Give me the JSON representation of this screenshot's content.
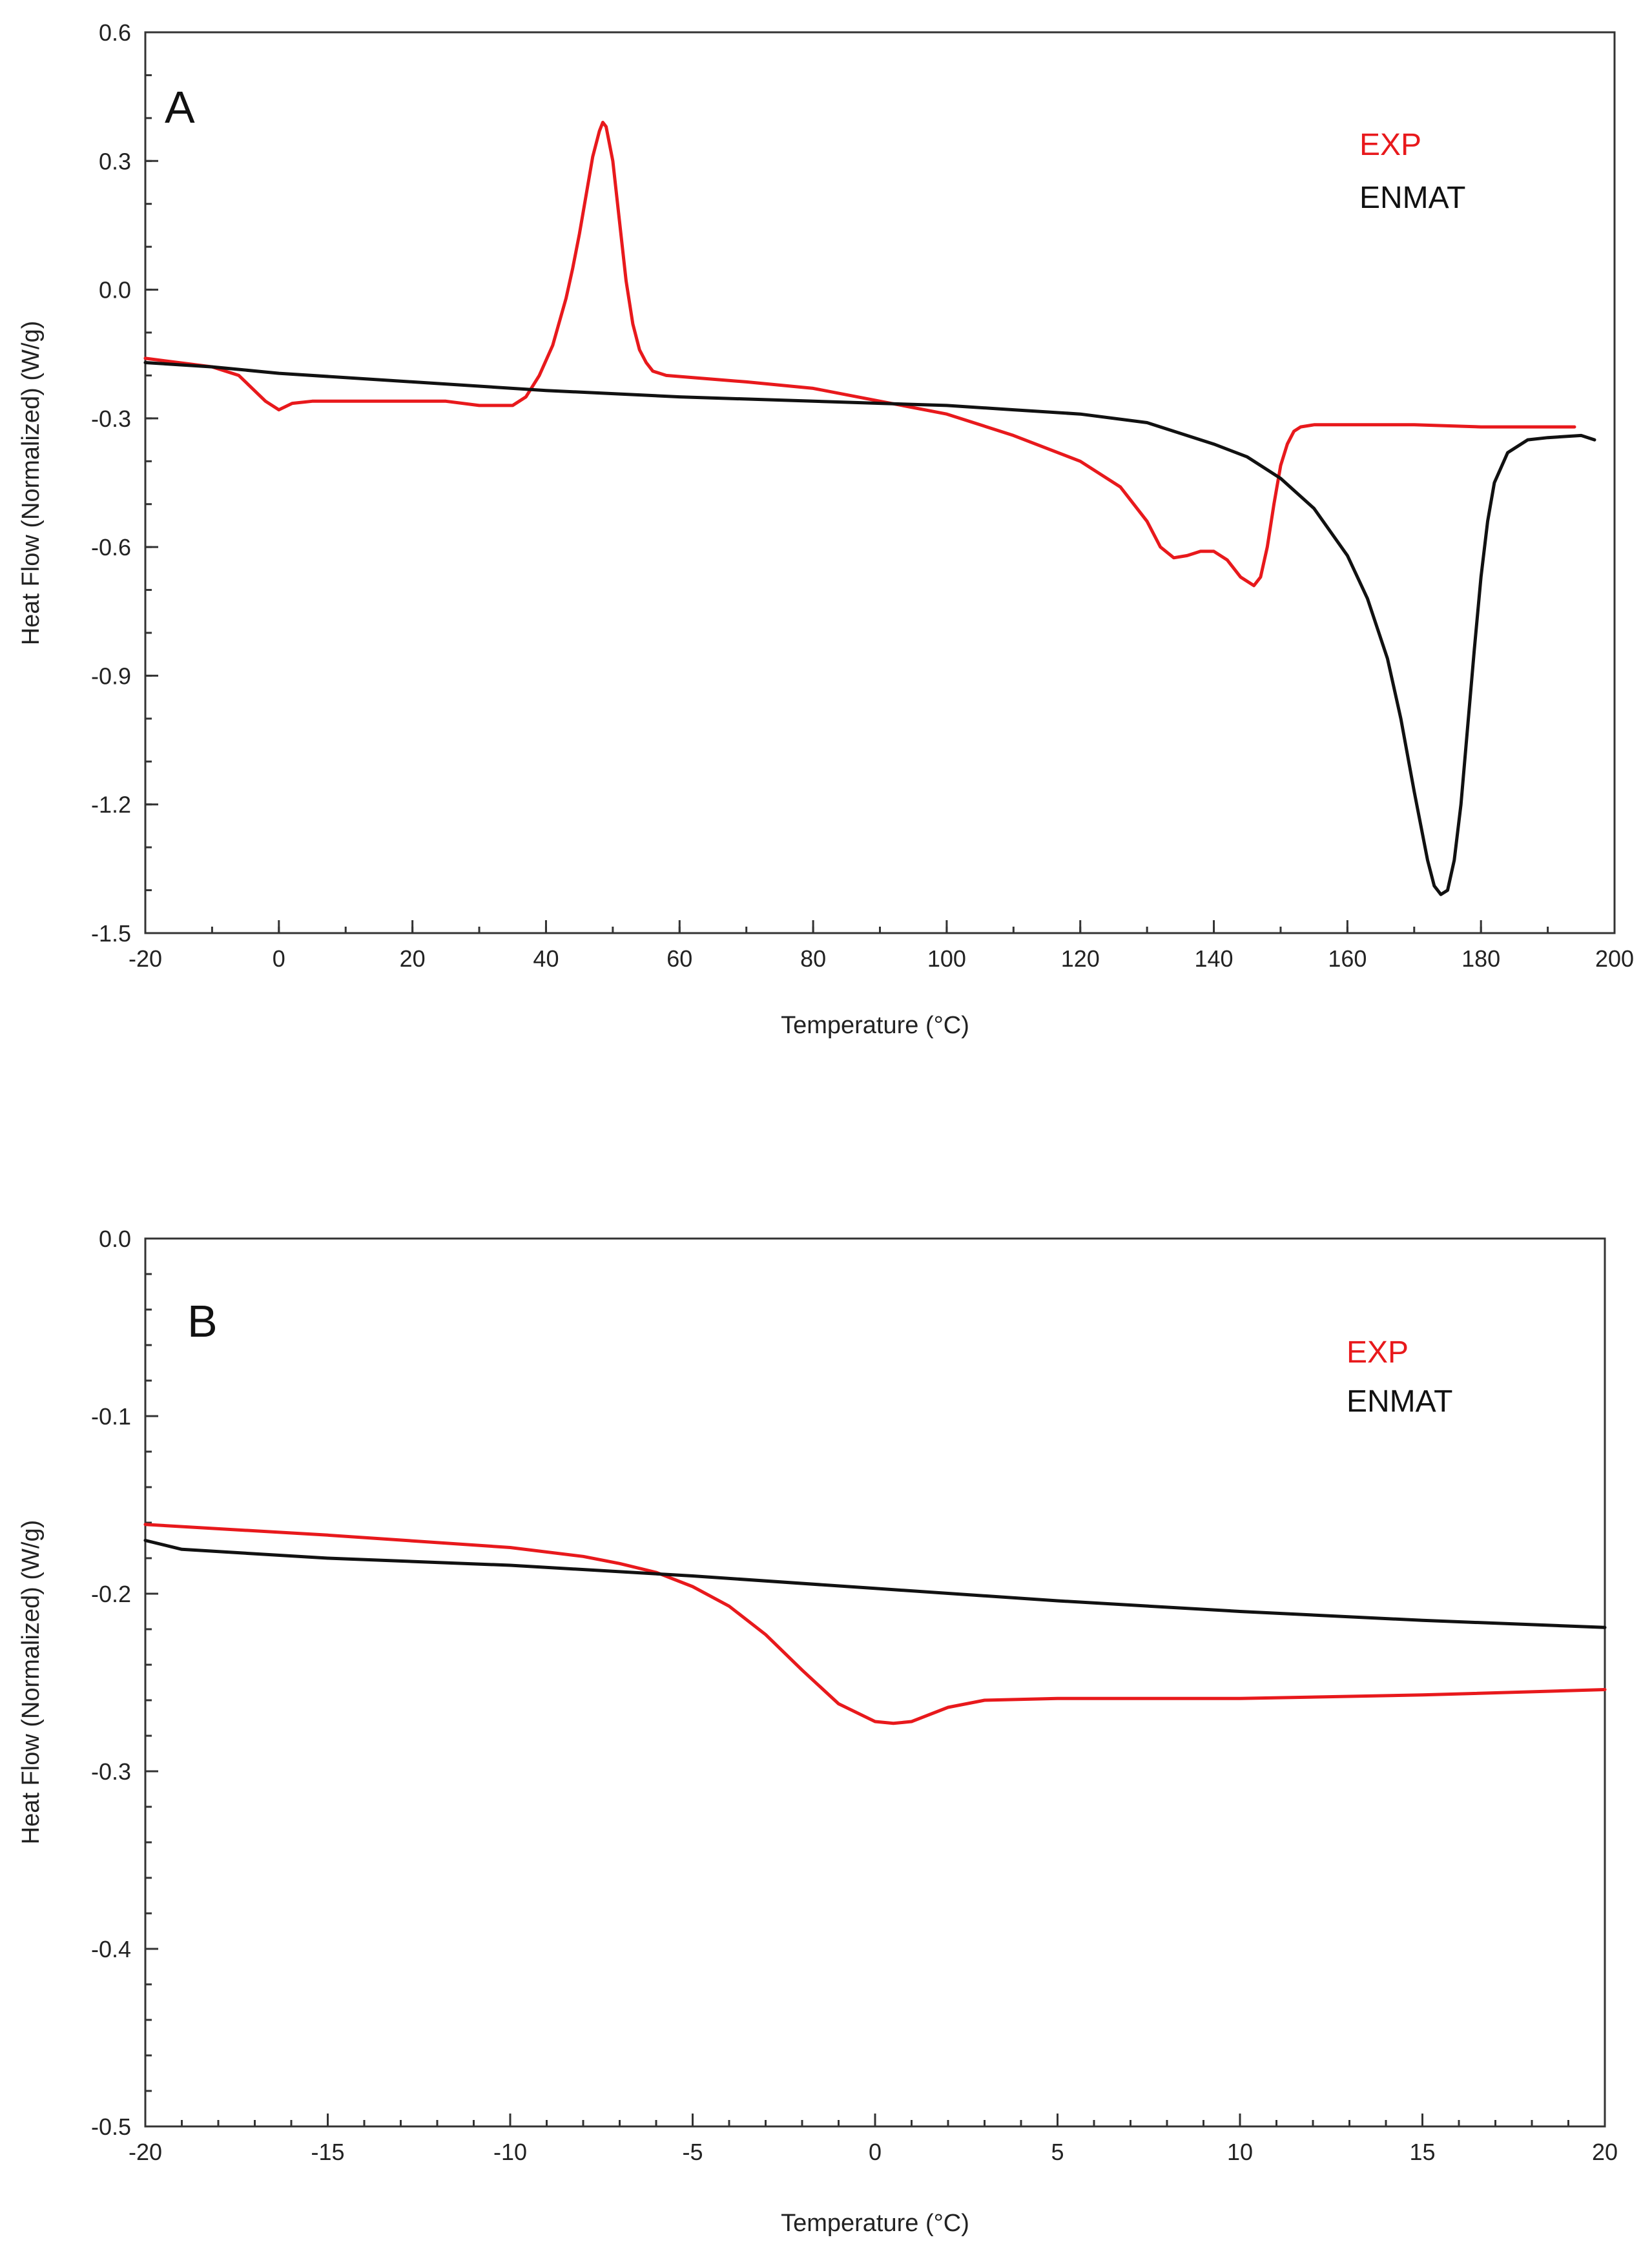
{
  "chart_data": [
    {
      "type": "line",
      "panel_label": "A",
      "xlabel": "Temperature  (°C)",
      "ylabel": "Heat Flow (Normalized)  (W/g)",
      "xlim": [
        -20,
        200
      ],
      "ylim": [
        -1.5,
        0.6
      ],
      "x_major_ticks": [
        -20,
        0,
        20,
        40,
        60,
        80,
        100,
        120,
        140,
        160,
        180,
        200
      ],
      "x_tick_labels": [
        "-20",
        "0",
        "20",
        "40",
        "60",
        "80",
        "100",
        "120",
        "140",
        "160",
        "180",
        "200"
      ],
      "y_major_ticks": [
        0.6,
        0.3,
        0.0,
        -0.3,
        -0.6,
        -0.9,
        -1.2,
        -1.5
      ],
      "y_tick_labels": [
        "0.6",
        "0.3",
        "0.0",
        "-0.3",
        "-0.6",
        "-0.9",
        "-1.2",
        "-1.5"
      ],
      "x_minor_step": 10,
      "y_minor_step": 0.1,
      "legend_position": "top-right",
      "series": [
        {
          "name": "EXP",
          "color": "#e8191c",
          "x": [
            -20,
            -10,
            -6,
            -4,
            -2,
            0,
            2,
            5,
            10,
            20,
            25,
            30,
            35,
            37,
            39,
            41,
            43,
            44,
            45,
            46,
            47,
            48,
            48.5,
            49,
            50,
            51,
            52,
            53,
            54,
            55,
            56,
            58,
            62,
            70,
            80,
            90,
            100,
            110,
            120,
            126,
            130,
            132,
            134,
            136,
            138,
            140,
            142,
            144,
            146,
            147,
            148,
            149,
            150,
            151,
            152,
            153,
            155,
            160,
            170,
            180,
            194
          ],
          "values": [
            -0.16,
            -0.18,
            -0.2,
            -0.23,
            -0.26,
            -0.28,
            -0.265,
            -0.26,
            -0.26,
            -0.26,
            -0.26,
            -0.27,
            -0.27,
            -0.25,
            -0.2,
            -0.13,
            -0.02,
            0.05,
            0.13,
            0.22,
            0.31,
            0.37,
            0.39,
            0.38,
            0.3,
            0.16,
            0.02,
            -0.08,
            -0.14,
            -0.17,
            -0.19,
            -0.2,
            -0.205,
            -0.215,
            -0.23,
            -0.26,
            -0.29,
            -0.34,
            -0.4,
            -0.46,
            -0.54,
            -0.6,
            -0.625,
            -0.62,
            -0.61,
            -0.61,
            -0.63,
            -0.67,
            -0.69,
            -0.67,
            -0.6,
            -0.5,
            -0.41,
            -0.36,
            -0.33,
            -0.32,
            -0.315,
            -0.315,
            -0.315,
            -0.32,
            -0.32
          ]
        },
        {
          "name": "ENMAT",
          "color": "#111111",
          "x": [
            -20,
            -10,
            0,
            20,
            40,
            60,
            80,
            100,
            110,
            120,
            130,
            140,
            145,
            150,
            155,
            160,
            163,
            166,
            168,
            170,
            172,
            173,
            174,
            175,
            176,
            177,
            178,
            179,
            180,
            181,
            182,
            184,
            187,
            190,
            195,
            197
          ],
          "values": [
            -0.17,
            -0.18,
            -0.195,
            -0.215,
            -0.235,
            -0.25,
            -0.26,
            -0.27,
            -0.28,
            -0.29,
            -0.31,
            -0.36,
            -0.39,
            -0.44,
            -0.51,
            -0.62,
            -0.72,
            -0.86,
            -1.0,
            -1.17,
            -1.33,
            -1.39,
            -1.41,
            -1.4,
            -1.33,
            -1.2,
            -1.02,
            -0.84,
            -0.67,
            -0.54,
            -0.45,
            -0.38,
            -0.35,
            -0.345,
            -0.34,
            -0.35
          ]
        }
      ]
    },
    {
      "type": "line",
      "panel_label": "B",
      "xlabel": "Temperature  (°C)",
      "ylabel": "Heat Flow (Normalized)  (W/g)",
      "xlim": [
        -20,
        20
      ],
      "ylim": [
        -0.5,
        0.0
      ],
      "x_major_ticks": [
        -20,
        -15,
        -10,
        -5,
        0,
        5,
        10,
        15,
        20
      ],
      "x_tick_labels": [
        "-20",
        "-15",
        "-10",
        "-5",
        "0",
        "5",
        "10",
        "15",
        "20"
      ],
      "y_major_ticks": [
        0.0,
        -0.1,
        -0.2,
        -0.3,
        -0.4,
        -0.5
      ],
      "y_tick_labels": [
        "0.0",
        "-0.1",
        "-0.2",
        "-0.3",
        "-0.4",
        "-0.5"
      ],
      "x_minor_step": 1,
      "y_minor_step": 0.02,
      "legend_position": "top-right",
      "series": [
        {
          "name": "EXP",
          "color": "#e8191c",
          "x": [
            -20,
            -15,
            -10,
            -8,
            -7,
            -6,
            -5,
            -4,
            -3,
            -2,
            -1,
            0,
            0.5,
            1,
            2,
            3,
            5,
            10,
            15,
            20
          ],
          "values": [
            -0.161,
            -0.167,
            -0.174,
            -0.179,
            -0.183,
            -0.188,
            -0.196,
            -0.207,
            -0.223,
            -0.243,
            -0.262,
            -0.272,
            -0.273,
            -0.272,
            -0.264,
            -0.26,
            -0.259,
            -0.259,
            -0.257,
            -0.254
          ]
        },
        {
          "name": "ENMAT",
          "color": "#111111",
          "x": [
            -20,
            -19,
            -15,
            -10,
            -5,
            0,
            5,
            10,
            15,
            20
          ],
          "values": [
            -0.17,
            -0.175,
            -0.18,
            -0.184,
            -0.19,
            -0.197,
            -0.204,
            -0.21,
            -0.215,
            -0.219
          ]
        }
      ]
    }
  ]
}
